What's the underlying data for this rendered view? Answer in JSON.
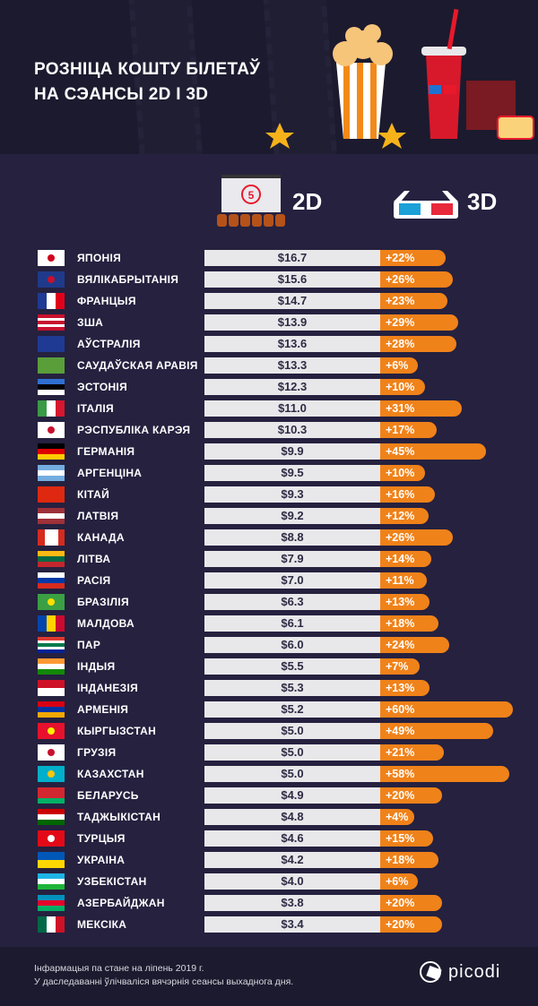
{
  "header": {
    "title_line1": "РОЗНІЦА КОШТУ БІЛЕТАЎ",
    "title_line2": "НА СЭАНСЫ 2D І 3D"
  },
  "legend": {
    "label_2d": "2D",
    "label_3d": "3D",
    "icon_2d": "cinema-screen-icon",
    "icon_3d": "3d-glasses-icon"
  },
  "colors": {
    "bar_2d": "#e8e8ea",
    "bar_3d": "#f0821a",
    "background": "#25213f"
  },
  "footer": {
    "note1": "Інфармацыя па стане на ліпень 2019 г.",
    "note2": "У даследаванні ўлічваліся вячэрнія сеансы выхаднога дня.",
    "brand": "picodi"
  },
  "chart_data": {
    "type": "bar",
    "series": [
      {
        "name": "2D",
        "unit": "USD"
      },
      {
        "name": "3D",
        "unit": "% markup over 2D"
      }
    ],
    "rows": [
      {
        "country": "ЯПОНІЯ",
        "price_2d": "$16.7",
        "value_2d": 16.7,
        "diff_3d": "+22%",
        "pct": 22,
        "flag": [
          "h",
          "#ffffff"
        ],
        "mark": "#d0021b"
      },
      {
        "country": "ВЯЛІКАБРЫТАНІЯ",
        "price_2d": "$15.6",
        "value_2d": 15.6,
        "diff_3d": "+26%",
        "pct": 26,
        "flag": [
          "h",
          "#1f3a8a"
        ],
        "mark": "uk"
      },
      {
        "country": "ФРАНЦЫЯ",
        "price_2d": "$14.7",
        "value_2d": 14.7,
        "diff_3d": "+23%",
        "pct": 23,
        "flag": [
          "v",
          "#1f3a93",
          "#ffffff",
          "#e1001a"
        ]
      },
      {
        "country": "ЗША",
        "price_2d": "$13.9",
        "value_2d": 13.9,
        "diff_3d": "+29%",
        "pct": 29,
        "flag": [
          "h",
          "#c8102e",
          "#ffffff",
          "#c8102e",
          "#ffffff",
          "#c8102e"
        ]
      },
      {
        "country": "АЎСТРАЛІЯ",
        "price_2d": "$13.6",
        "value_2d": 13.6,
        "diff_3d": "+28%",
        "pct": 28,
        "flag": [
          "h",
          "#1f3a93"
        ]
      },
      {
        "country": "САУДАЎСКАЯ АРАВІЯ",
        "price_2d": "$13.3",
        "value_2d": 13.3,
        "diff_3d": "+6%",
        "pct": 6,
        "flag": [
          "h",
          "#5a9e3a"
        ]
      },
      {
        "country": "ЭСТОНІЯ",
        "price_2d": "$12.3",
        "value_2d": 12.3,
        "diff_3d": "+10%",
        "pct": 10,
        "flag": [
          "h",
          "#2f6fd1",
          "#000000",
          "#ffffff"
        ]
      },
      {
        "country": "ІТАЛІЯ",
        "price_2d": "$11.0",
        "value_2d": 11.0,
        "diff_3d": "+31%",
        "pct": 31,
        "flag": [
          "v",
          "#3a9a46",
          "#ffffff",
          "#d7172f"
        ]
      },
      {
        "country": "РЭСПУБЛІКА КАРЭЯ",
        "price_2d": "$10.3",
        "value_2d": 10.3,
        "diff_3d": "+17%",
        "pct": 17,
        "flag": [
          "h",
          "#ffffff"
        ],
        "mark": "#c8102e"
      },
      {
        "country": "ГЕРМАНІЯ",
        "price_2d": "$9.9",
        "value_2d": 9.9,
        "diff_3d": "+45%",
        "pct": 45,
        "flag": [
          "h",
          "#000000",
          "#dd0000",
          "#ffcc00"
        ]
      },
      {
        "country": "АРГЕНЦІНА",
        "price_2d": "$9.5",
        "value_2d": 9.5,
        "diff_3d": "+10%",
        "pct": 10,
        "flag": [
          "h",
          "#74acdf",
          "#ffffff",
          "#74acdf"
        ]
      },
      {
        "country": "КІТАЙ",
        "price_2d": "$9.3",
        "value_2d": 9.3,
        "diff_3d": "+16%",
        "pct": 16,
        "flag": [
          "h",
          "#de2910"
        ]
      },
      {
        "country": "ЛАТВІЯ",
        "price_2d": "$9.2",
        "value_2d": 9.2,
        "diff_3d": "+12%",
        "pct": 12,
        "flag": [
          "h",
          "#9e3039",
          "#ffffff",
          "#9e3039"
        ]
      },
      {
        "country": "КАНАДА",
        "price_2d": "$8.8",
        "value_2d": 8.8,
        "diff_3d": "+26%",
        "pct": 26,
        "flag": [
          "v",
          "#d52b1e",
          "#ffffff",
          "#ffffff",
          "#d52b1e"
        ]
      },
      {
        "country": "ЛІТВА",
        "price_2d": "$7.9",
        "value_2d": 7.9,
        "diff_3d": "+14%",
        "pct": 14,
        "flag": [
          "h",
          "#fdb913",
          "#006a44",
          "#c1272d"
        ]
      },
      {
        "country": "РАСІЯ",
        "price_2d": "$7.0",
        "value_2d": 7.0,
        "diff_3d": "+11%",
        "pct": 11,
        "flag": [
          "h",
          "#ffffff",
          "#0039a6",
          "#d52b1e"
        ]
      },
      {
        "country": "БРАЗІЛІЯ",
        "price_2d": "$6.3",
        "value_2d": 6.3,
        "diff_3d": "+13%",
        "pct": 13,
        "flag": [
          "h",
          "#3aa043"
        ],
        "mark": "#fedf00"
      },
      {
        "country": "МАЛДОВА",
        "price_2d": "$6.1",
        "value_2d": 6.1,
        "diff_3d": "+18%",
        "pct": 18,
        "flag": [
          "v",
          "#0046ae",
          "#ffd200",
          "#cc092f"
        ]
      },
      {
        "country": "ПАР",
        "price_2d": "$6.0",
        "value_2d": 6.0,
        "diff_3d": "+24%",
        "pct": 24,
        "flag": [
          "h",
          "#de3831",
          "#ffffff",
          "#007a4d",
          "#ffffff",
          "#002395"
        ]
      },
      {
        "country": "ІНДЫЯ",
        "price_2d": "$5.5",
        "value_2d": 5.5,
        "diff_3d": "+7%",
        "pct": 7,
        "flag": [
          "h",
          "#ff9933",
          "#ffffff",
          "#138808"
        ]
      },
      {
        "country": "ІНДАНЕЗІЯ",
        "price_2d": "$5.3",
        "value_2d": 5.3,
        "diff_3d": "+13%",
        "pct": 13,
        "flag": [
          "h",
          "#ce1126",
          "#ffffff"
        ]
      },
      {
        "country": "АРМЕНІЯ",
        "price_2d": "$5.2",
        "value_2d": 5.2,
        "diff_3d": "+60%",
        "pct": 60,
        "flag": [
          "h",
          "#d90012",
          "#0033a0",
          "#f2a800"
        ]
      },
      {
        "country": "КЫРГЫЗСТАН",
        "price_2d": "$5.0",
        "value_2d": 5.0,
        "diff_3d": "+49%",
        "pct": 49,
        "flag": [
          "h",
          "#e8112d"
        ],
        "mark": "#ffef00"
      },
      {
        "country": "ГРУЗІЯ",
        "price_2d": "$5.0",
        "value_2d": 5.0,
        "diff_3d": "+21%",
        "pct": 21,
        "flag": [
          "h",
          "#ffffff"
        ],
        "mark": "georgia"
      },
      {
        "country": "КАЗАХСТАН",
        "price_2d": "$5.0",
        "value_2d": 5.0,
        "diff_3d": "+58%",
        "pct": 58,
        "flag": [
          "h",
          "#00afca"
        ],
        "mark": "#fec50c"
      },
      {
        "country": "БЕЛАРУСЬ",
        "price_2d": "$4.9",
        "value_2d": 4.9,
        "diff_3d": "+20%",
        "pct": 20,
        "flag": [
          "h",
          "#d22730",
          "#d22730",
          "#00af66"
        ]
      },
      {
        "country": "ТАДЖЫКІСТАН",
        "price_2d": "$4.8",
        "value_2d": 4.8,
        "diff_3d": "+4%",
        "pct": 4,
        "flag": [
          "h",
          "#cc0000",
          "#ffffff",
          "#006600"
        ]
      },
      {
        "country": "ТУРЦЫЯ",
        "price_2d": "$4.6",
        "value_2d": 4.6,
        "diff_3d": "+15%",
        "pct": 15,
        "flag": [
          "h",
          "#e30a17"
        ],
        "mark": "#ffffff"
      },
      {
        "country": "УКРАІНА",
        "price_2d": "$4.2",
        "value_2d": 4.2,
        "diff_3d": "+18%",
        "pct": 18,
        "flag": [
          "h",
          "#0057b7",
          "#ffd700"
        ]
      },
      {
        "country": "УЗБЕКІСТАН",
        "price_2d": "$4.0",
        "value_2d": 4.0,
        "diff_3d": "+6%",
        "pct": 6,
        "flag": [
          "h",
          "#1eb5e6",
          "#ffffff",
          "#1eb53a"
        ]
      },
      {
        "country": "АЗЕРБАЙДЖАН",
        "price_2d": "$3.8",
        "value_2d": 3.8,
        "diff_3d": "+20%",
        "pct": 20,
        "flag": [
          "h",
          "#0092bc",
          "#e4002b",
          "#00af66"
        ]
      },
      {
        "country": "МЕКСІКА",
        "price_2d": "$3.4",
        "value_2d": 3.4,
        "diff_3d": "+20%",
        "pct": 20,
        "flag": [
          "v",
          "#006847",
          "#ffffff",
          "#ce1126"
        ]
      }
    ]
  }
}
